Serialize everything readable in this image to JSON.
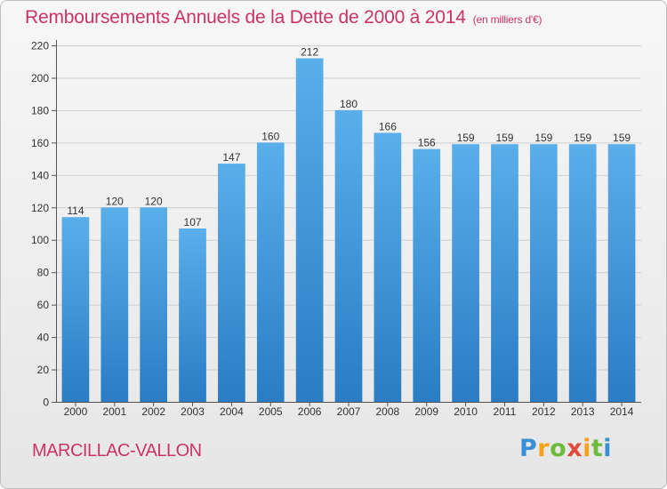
{
  "chart_data": {
    "type": "bar",
    "title": "Remboursements Annuels de la Dette de 2000 à 2014",
    "subtitle": "(en milliers d'€)",
    "categories": [
      "2000",
      "2001",
      "2002",
      "2003",
      "2004",
      "2005",
      "2006",
      "2007",
      "2008",
      "2009",
      "2010",
      "2011",
      "2012",
      "2013",
      "2014"
    ],
    "values": [
      114,
      120,
      120,
      107,
      147,
      160,
      212,
      180,
      166,
      156,
      159,
      159,
      159,
      159,
      159
    ],
    "ylim": [
      0,
      220
    ],
    "yticks": [
      0,
      20,
      40,
      60,
      80,
      100,
      120,
      140,
      160,
      180,
      200,
      220
    ],
    "grid": true,
    "bar_color": "#3d8fd8"
  },
  "footer": {
    "commune": "MARCILLAC-VALLON",
    "logo": "Proxiti"
  }
}
